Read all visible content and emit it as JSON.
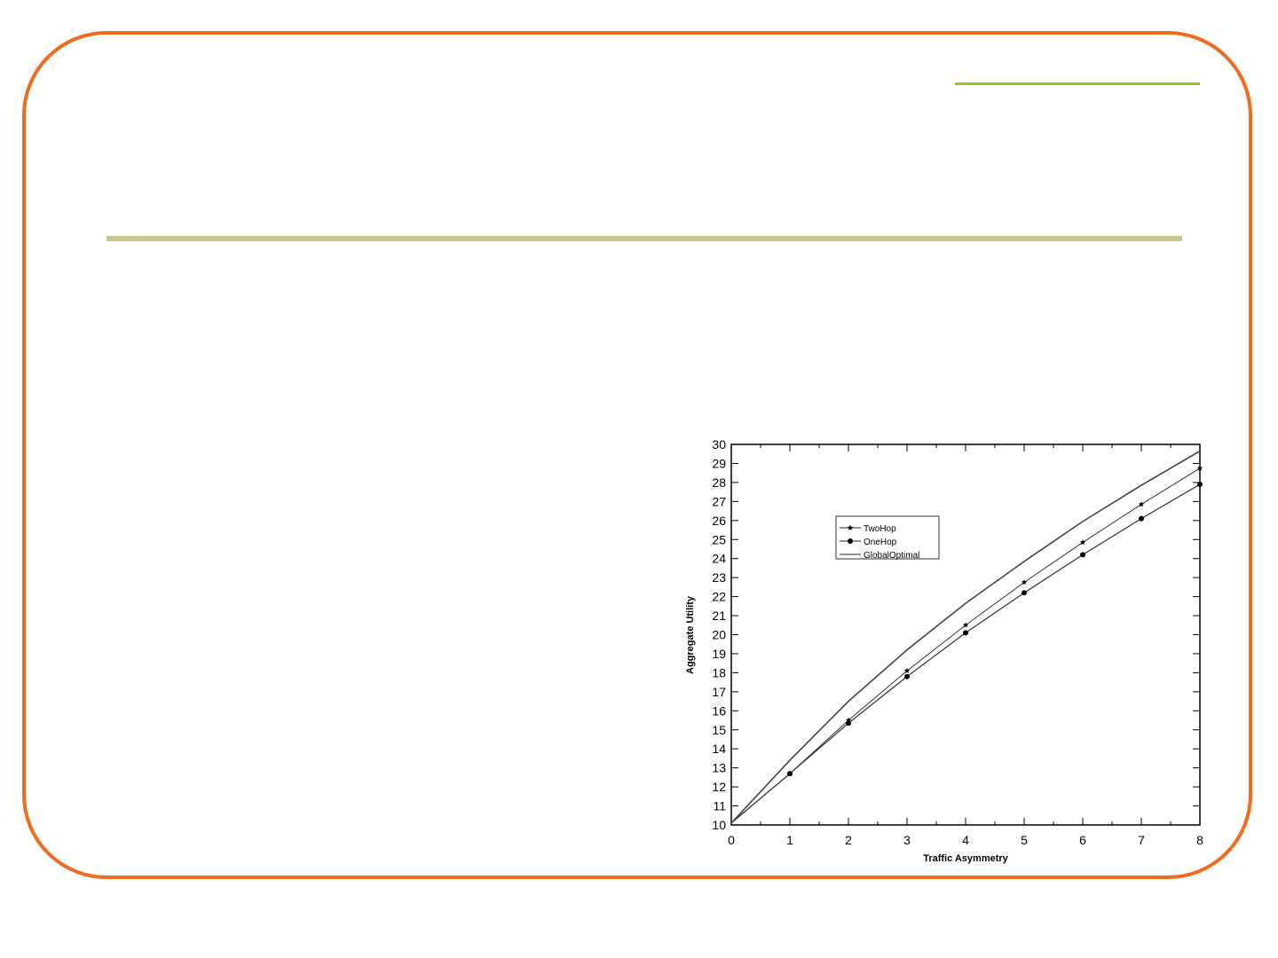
{
  "slide": {
    "frame_color": "#f26b1d",
    "accent_line_color": "#99c221",
    "title_rule_color": "#c6c990"
  },
  "chart_data": {
    "type": "line",
    "title": "",
    "xlabel": "Traffic Asymmetry",
    "ylabel": "Aggregate Utility",
    "xlim": [
      0,
      8
    ],
    "ylim": [
      10,
      30
    ],
    "x": [
      0,
      1,
      2,
      3,
      4,
      5,
      6,
      7,
      8
    ],
    "xticks": [
      "0",
      "1",
      "2",
      "3",
      "4",
      "5",
      "6",
      "7",
      "8"
    ],
    "yticks": [
      "10",
      "11",
      "12",
      "13",
      "14",
      "15",
      "16",
      "17",
      "18",
      "19",
      "20",
      "21",
      "22",
      "23",
      "24",
      "25",
      "26",
      "27",
      "28",
      "29",
      "30"
    ],
    "grid": false,
    "legend_position": "upper-left inside",
    "series": [
      {
        "name": "TwoHop",
        "marker": "star",
        "values": [
          10.1,
          12.7,
          15.5,
          18.1,
          20.5,
          22.75,
          24.85,
          26.85,
          28.75
        ]
      },
      {
        "name": "OneHop",
        "marker": "circle",
        "values": [
          10.1,
          12.7,
          15.35,
          17.8,
          20.1,
          22.2,
          24.2,
          26.1,
          27.9
        ]
      },
      {
        "name": "GlobalOptimal",
        "marker": "none",
        "values": [
          10.1,
          13.4,
          16.5,
          19.2,
          21.65,
          23.85,
          25.95,
          27.85,
          29.65
        ]
      }
    ]
  }
}
